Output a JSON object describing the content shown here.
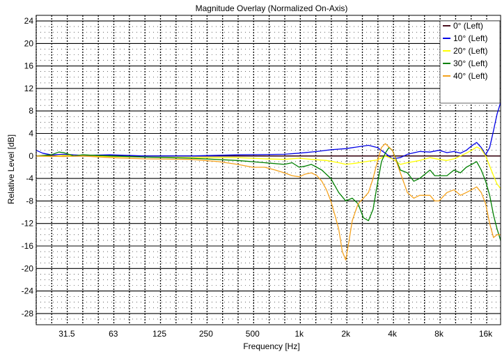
{
  "chart_data": {
    "type": "line",
    "title": "Magnitude Overlay (Normalized On-Axis)",
    "xlabel": "Frequency [Hz]",
    "ylabel": "Relative Level [dB]",
    "x_scale": "log",
    "xlim": [
      20,
      20000
    ],
    "ylim": [
      -30,
      25
    ],
    "grid": true,
    "legend_position": "top-right",
    "x_tick_labels": [
      {
        "value": 31.5,
        "label": "31.5"
      },
      {
        "value": 63,
        "label": "63"
      },
      {
        "value": 125,
        "label": "125"
      },
      {
        "value": 250,
        "label": "250"
      },
      {
        "value": 500,
        "label": "500"
      },
      {
        "value": 1000,
        "label": "1k"
      },
      {
        "value": 2000,
        "label": "2k"
      },
      {
        "value": 4000,
        "label": "4k"
      },
      {
        "value": 8000,
        "label": "8k"
      },
      {
        "value": 16000,
        "label": "16k"
      }
    ],
    "y_ticks": [
      24,
      20,
      16,
      12,
      8,
      4,
      0,
      -4,
      -8,
      -12,
      -16,
      -20,
      -24,
      -28
    ],
    "series": [
      {
        "name": "0° (Left)",
        "color": "#4a0f1e",
        "x": [
          20,
          20000
        ],
        "y": [
          0,
          0
        ]
      },
      {
        "name": "10° (Left)",
        "color": "#0000e6",
        "x": [
          20,
          22,
          25,
          30,
          40,
          60,
          100,
          200,
          400,
          800,
          1000,
          1300,
          1600,
          2000,
          2500,
          2800,
          3200,
          3600,
          4000,
          4500,
          5000,
          6000,
          7000,
          8000,
          9000,
          10000,
          11000,
          12000,
          13000,
          14000,
          15000,
          16000,
          17000,
          18000,
          19000,
          20000
        ],
        "y": [
          1.0,
          0.5,
          0.2,
          0.3,
          0.1,
          0.2,
          0.0,
          0.0,
          0.2,
          0.3,
          0.5,
          0.8,
          1.1,
          1.3,
          1.7,
          1.9,
          1.5,
          0.5,
          -0.5,
          -0.3,
          0.3,
          0.8,
          0.7,
          1.0,
          0.6,
          0.8,
          0.5,
          1.0,
          1.8,
          2.4,
          1.5,
          0.2,
          1.5,
          4.5,
          7.5,
          9.5
        ]
      },
      {
        "name": "20° (Left)",
        "color": "#ffff00",
        "x": [
          20,
          25,
          30,
          40,
          60,
          100,
          200,
          400,
          600,
          800,
          1000,
          1200,
          1500,
          1800,
          2000,
          2300,
          2700,
          3200,
          3600,
          4000,
          4500,
          5000,
          6000,
          7000,
          8000,
          9000,
          10000,
          11000,
          12000,
          13000,
          14000,
          15000,
          16000,
          17000,
          18000,
          19000,
          20000
        ],
        "y": [
          0.0,
          -0.1,
          0.1,
          0.0,
          -0.1,
          -0.2,
          -0.3,
          -0.3,
          -0.5,
          -0.6,
          -0.4,
          -0.6,
          -0.8,
          -1.2,
          -1.5,
          -1.3,
          -1.0,
          -0.7,
          0.0,
          -0.5,
          -1.5,
          -1.2,
          -0.8,
          -0.3,
          -0.6,
          -0.8,
          -0.5,
          0.0,
          0.5,
          1.0,
          1.6,
          1.2,
          0.0,
          -1.8,
          -3.5,
          -5.0,
          -5.8
        ]
      },
      {
        "name": "30° (Left)",
        "color": "#008000",
        "x": [
          20,
          25,
          28,
          30,
          35,
          40,
          60,
          100,
          200,
          400,
          600,
          800,
          900,
          1000,
          1100,
          1200,
          1400,
          1600,
          1800,
          2000,
          2200,
          2400,
          2600,
          2800,
          3000,
          3200,
          3400,
          3600,
          3800,
          4000,
          4500,
          5000,
          5500,
          6000,
          7000,
          7500,
          8000,
          9000,
          10000,
          11000,
          12000,
          13000,
          14000,
          15000,
          16000,
          17000,
          18000,
          19000,
          20000
        ],
        "y": [
          0.0,
          0.2,
          0.7,
          0.6,
          0.0,
          0.2,
          0.0,
          -0.2,
          -0.4,
          -0.8,
          -1.2,
          -1.5,
          -1.2,
          -2.0,
          -1.8,
          -1.5,
          -2.5,
          -4.0,
          -6.5,
          -8.0,
          -7.5,
          -8.5,
          -11.0,
          -11.5,
          -9.5,
          -5.0,
          -1.0,
          0.5,
          1.5,
          1.0,
          -2.5,
          -3.0,
          -4.5,
          -4.0,
          -2.5,
          -3.5,
          -3.5,
          -3.5,
          -2.5,
          -3.0,
          -2.0,
          -1.5,
          -1.0,
          -2.5,
          -4.5,
          -7.0,
          -10.5,
          -13.0,
          -15.0
        ]
      },
      {
        "name": "40° (Left)",
        "color": "#f4a21d",
        "x": [
          20,
          30,
          40,
          60,
          100,
          200,
          300,
          400,
          500,
          600,
          700,
          800,
          900,
          1000,
          1100,
          1200,
          1300,
          1400,
          1500,
          1600,
          1700,
          1800,
          1900,
          2000,
          2100,
          2200,
          2400,
          2600,
          2800,
          3000,
          3200,
          3400,
          3600,
          4000,
          4500,
          5000,
          5500,
          6000,
          7000,
          7500,
          8000,
          9000,
          10000,
          11000,
          12000,
          13000,
          14000,
          15000,
          16000,
          17000,
          18000,
          19000,
          20000
        ],
        "y": [
          0.0,
          -0.1,
          0.0,
          -0.3,
          -0.5,
          -0.6,
          -1.0,
          -1.5,
          -2.0,
          -2.0,
          -2.5,
          -3.0,
          -3.5,
          -3.7,
          -3.2,
          -3.0,
          -3.5,
          -4.5,
          -6.0,
          -8.0,
          -10.5,
          -13.0,
          -17.0,
          -18.5,
          -15.0,
          -11.5,
          -8.5,
          -7.5,
          -6.5,
          -4.0,
          -1.0,
          1.5,
          2.2,
          1.0,
          -3.0,
          -6.5,
          -7.5,
          -7.0,
          -7.0,
          -8.0,
          -8.0,
          -6.5,
          -6.0,
          -7.0,
          -6.5,
          -6.0,
          -5.5,
          -6.5,
          -8.5,
          -12.0,
          -14.5,
          -14.0,
          -14.0
        ]
      }
    ]
  }
}
